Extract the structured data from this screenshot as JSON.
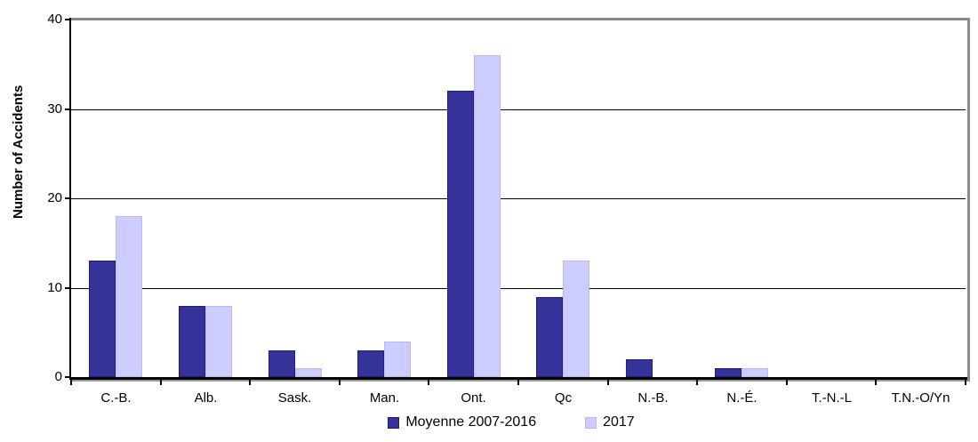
{
  "chart_data": {
    "type": "bar",
    "title": "",
    "xlabel": "",
    "ylabel": "Number of Accidents",
    "ylim": [
      0,
      40
    ],
    "yticks": [
      0,
      10,
      20,
      30,
      40
    ],
    "gridline_values": [
      10,
      20,
      30
    ],
    "grid": "horizontal-major",
    "legend_position": "bottom-center",
    "categories": [
      "C.-B.",
      "Alb.",
      "Sask.",
      "Man.",
      "Ont.",
      "Qc",
      "N.-B.",
      "N.-É.",
      "T.-N.-L",
      "T.N.-O/Yn"
    ],
    "series": [
      {
        "name": "Moyenne 2007-2016",
        "color": "#333399",
        "border_color": "#1f1f7a",
        "values": [
          13,
          8,
          3,
          3,
          32,
          9,
          2,
          1,
          0,
          0
        ]
      },
      {
        "name": "2017",
        "color": "#ccccff",
        "border_color": "#b9b9ef",
        "values": [
          18,
          8,
          1,
          4,
          36,
          13,
          0,
          1,
          0,
          0
        ]
      }
    ]
  },
  "colors": {
    "plot_border_gray": "#8a8a8a",
    "axis_black": "#000000",
    "background": "#ffffff"
  }
}
